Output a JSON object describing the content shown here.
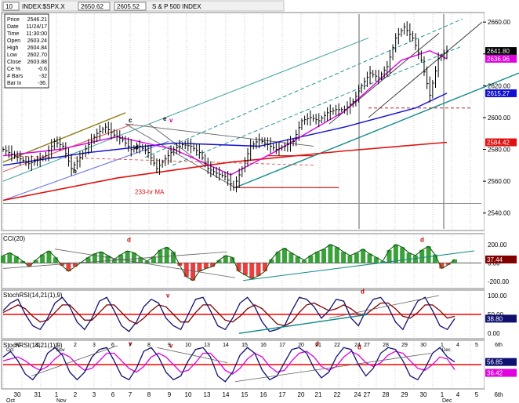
{
  "toolbar": {
    "interval": "10",
    "symbol": "INDEX:$SPX.X",
    "price_a": "2650.62",
    "price_b": "2605.52",
    "name": "S & P 500 INDEX"
  },
  "info_box": [
    {
      "label": "Price",
      "value": "2546.21"
    },
    {
      "label": "Date",
      "value": "11/24/17"
    },
    {
      "label": "Time",
      "value": "11:30:00"
    },
    {
      "label": "Open",
      "value": "2603.24"
    },
    {
      "label": "High",
      "value": "2604.84"
    },
    {
      "label": "Low",
      "value": "2602.70"
    },
    {
      "label": "Close",
      "value": "2603.88"
    },
    {
      "label": "Ce %",
      "value": "-0.6"
    },
    {
      "label": "# Bars",
      "value": "-32"
    },
    {
      "label": "Bar Ix",
      "value": "-36."
    }
  ],
  "colors": {
    "price_bars": "#000000",
    "ma_233": "#e01010",
    "ma_blue": "#1010d0",
    "ma_magenta": "#e000e0",
    "teal": "#108a8a",
    "olive": "#8a7a10",
    "cci_green": "#0a8a0a",
    "cci_red": "#e01010",
    "stoch_navy": "#101070",
    "stoch_maroon": "#800000",
    "stoch_magenta": "#e000e0",
    "ref_line": "#ff0000"
  },
  "chart_data": [
    {
      "type": "line",
      "panel": "price",
      "title": "S & P 500 INDEX",
      "annotation_ma": "233-hr MA",
      "annotation_letters": [
        "b",
        "d",
        "c",
        "e",
        "v"
      ],
      "ylim": [
        2530,
        2665
      ],
      "y_ticks": [
        "2660.00",
        "2640.00",
        "2620.00",
        "2600.00",
        "2580.00",
        "2560.00",
        "2540.00"
      ],
      "right_tags": [
        {
          "label": "2641.80",
          "value": 2641.8,
          "color": "#000000"
        },
        {
          "label": "2636.96",
          "value": 2636.96,
          "color": "#e000e0"
        },
        {
          "label": "2615.27",
          "value": 2615.27,
          "color": "#1010d0"
        },
        {
          "label": "2584.42",
          "value": 2584.42,
          "color": "#e01010"
        }
      ],
      "close_path": [
        [
          0,
          2580
        ],
        [
          3,
          2577
        ],
        [
          6,
          2574
        ],
        [
          9,
          2571
        ],
        [
          12,
          2573
        ],
        [
          15,
          2576
        ],
        [
          18,
          2585
        ],
        [
          21,
          2582
        ],
        [
          24,
          2568
        ],
        [
          27,
          2575
        ],
        [
          30,
          2583
        ],
        [
          33,
          2590
        ],
        [
          36,
          2594
        ],
        [
          39,
          2589
        ],
        [
          42,
          2586
        ],
        [
          45,
          2580
        ],
        [
          48,
          2582
        ],
        [
          51,
          2578
        ],
        [
          54,
          2568
        ],
        [
          57,
          2574
        ],
        [
          60,
          2580
        ],
        [
          63,
          2583
        ],
        [
          66,
          2582
        ],
        [
          69,
          2578
        ],
        [
          72,
          2568
        ],
        [
          75,
          2565
        ],
        [
          78,
          2563
        ],
        [
          81,
          2556
        ],
        [
          84,
          2568
        ],
        [
          87,
          2582
        ],
        [
          90,
          2586
        ],
        [
          93,
          2583
        ],
        [
          96,
          2580
        ],
        [
          99,
          2582
        ],
        [
          102,
          2585
        ],
        [
          105,
          2598
        ],
        [
          108,
          2600
        ],
        [
          111,
          2598
        ],
        [
          114,
          2603
        ],
        [
          117,
          2605
        ],
        [
          120,
          2605
        ],
        [
          123,
          2610
        ],
        [
          126,
          2620
        ],
        [
          129,
          2628
        ],
        [
          132,
          2625
        ],
        [
          135,
          2632
        ],
        [
          138,
          2650
        ],
        [
          141,
          2657
        ],
        [
          144,
          2650
        ],
        [
          147,
          2636
        ],
        [
          150,
          2614
        ],
        [
          153,
          2637
        ],
        [
          156,
          2641.8
        ]
      ],
      "ma_233_path": [
        [
          0,
          2548
        ],
        [
          40,
          2562
        ],
        [
          80,
          2572
        ],
        [
          120,
          2579
        ],
        [
          156,
          2584.42
        ]
      ],
      "ma_blue_path": [
        [
          0,
          2570
        ],
        [
          30,
          2578
        ],
        [
          60,
          2584
        ],
        [
          90,
          2582
        ],
        [
          120,
          2594
        ],
        [
          145,
          2606
        ],
        [
          156,
          2615.27
        ]
      ],
      "ma_magenta_path": [
        [
          0,
          2576
        ],
        [
          20,
          2580
        ],
        [
          40,
          2588
        ],
        [
          60,
          2580
        ],
        [
          80,
          2564
        ],
        [
          95,
          2578
        ],
        [
          120,
          2604
        ],
        [
          140,
          2636
        ],
        [
          150,
          2642
        ],
        [
          156,
          2636.96
        ]
      ]
    },
    {
      "type": "bar",
      "panel": "cci",
      "title": "CCI(20)",
      "annotation_letters": [
        "d",
        "d"
      ],
      "ylim": [
        -260,
        300
      ],
      "y_ticks": [
        "200.00",
        "0.00",
        "-200.00"
      ],
      "right_tags": [
        {
          "label": "37.44",
          "value": 37.44,
          "color": "#800000"
        }
      ],
      "values": [
        80,
        110,
        70,
        20,
        -40,
        30,
        90,
        130,
        60,
        -30,
        -90,
        -40,
        10,
        60,
        100,
        120,
        80,
        40,
        90,
        130,
        110,
        60,
        20,
        70,
        140,
        170,
        120,
        -30,
        -150,
        -190,
        -90,
        -60,
        -40,
        30,
        80,
        60,
        -90,
        -130,
        -170,
        -140,
        -90,
        40,
        120,
        160,
        110,
        70,
        30,
        80,
        120,
        150,
        200,
        170,
        120,
        80,
        110,
        150,
        100,
        60,
        20,
        140,
        200,
        170,
        110,
        80,
        140,
        180,
        90,
        -60,
        -20,
        37.44
      ]
    },
    {
      "type": "line",
      "panel": "stochrsi_1",
      "title": "StochRSI(14,21(1),9)",
      "annotation_letters": [
        "v",
        "d"
      ],
      "ylim": [
        -10,
        110
      ],
      "y_ticks": [
        "100.00",
        "50.00",
        "0.00"
      ],
      "reference_line": 50,
      "right_tags": [
        {
          "label": "38.80",
          "value": 38.8,
          "color": "#101070"
        }
      ],
      "k_values": [
        60,
        80,
        90,
        50,
        20,
        10,
        40,
        80,
        95,
        70,
        30,
        10,
        40,
        85,
        95,
        60,
        20,
        5,
        30,
        70,
        90,
        80,
        40,
        20,
        10,
        50,
        90,
        95,
        60,
        20,
        10,
        40,
        80,
        95,
        70,
        30,
        5,
        10,
        20,
        60,
        95,
        90,
        70,
        40,
        60,
        90,
        85,
        40,
        20,
        60,
        90,
        95,
        70,
        30,
        10,
        50,
        85,
        95,
        60,
        20,
        10,
        38.8
      ],
      "d_values": [
        55,
        65,
        75,
        65,
        45,
        30,
        35,
        55,
        75,
        75,
        55,
        35,
        35,
        55,
        75,
        75,
        55,
        35,
        25,
        40,
        60,
        75,
        70,
        50,
        30,
        30,
        55,
        75,
        75,
        55,
        35,
        30,
        45,
        65,
        75,
        65,
        45,
        25,
        20,
        30,
        55,
        75,
        80,
        70,
        60,
        65,
        75,
        65,
        50,
        50,
        65,
        80,
        80,
        65,
        45,
        40,
        55,
        75,
        75,
        60,
        40,
        45
      ]
    },
    {
      "type": "line",
      "panel": "stochrsi_2",
      "title": "StochRSI(14,21(1),9)",
      "annotation_letters": [
        "v",
        "v",
        "d",
        "d"
      ],
      "ylim": [
        -10,
        110
      ],
      "y_ticks": [],
      "reference_line": 50,
      "right_tags": [
        {
          "label": "56.85",
          "value": 56.85,
          "color": "#101070"
        },
        {
          "label": "36.42",
          "value": 36.42,
          "color": "#e000e0"
        }
      ],
      "x_ticks": [
        "30",
        "31",
        "Nov",
        "2",
        "3",
        "6",
        "7",
        "8",
        "9",
        "10",
        "13",
        "14",
        "15",
        "16",
        "17",
        "20",
        "21",
        "22",
        "24",
        "27",
        "28",
        "29",
        "30",
        "1",
        "Dec",
        "4",
        "5",
        "6th"
      ],
      "x_tick_rows": {
        "row1": [
          "30",
          "31",
          "1",
          "2",
          "3",
          "6",
          "7",
          "8",
          "9",
          "10",
          "13",
          "14",
          "15",
          "16",
          "17",
          "20",
          "21",
          "22",
          "24",
          "27",
          "28",
          "29",
          "30",
          "1",
          "4",
          "5",
          "6th"
        ],
        "row2": [
          "Oct",
          "Nov",
          "Dec"
        ]
      },
      "k_values": [
        70,
        85,
        60,
        25,
        10,
        35,
        80,
        95,
        75,
        30,
        10,
        30,
        70,
        90,
        95,
        60,
        20,
        10,
        40,
        85,
        95,
        70,
        30,
        10,
        20,
        60,
        90,
        95,
        70,
        20,
        5,
        30,
        75,
        95,
        80,
        35,
        10,
        20,
        55,
        90,
        95,
        80,
        40,
        15,
        30,
        70,
        95,
        90,
        50,
        20,
        40,
        80,
        95,
        90,
        60,
        20,
        10,
        40,
        80,
        95,
        70,
        56.85
      ],
      "d_values": [
        60,
        65,
        70,
        60,
        45,
        35,
        45,
        65,
        80,
        70,
        50,
        35,
        40,
        60,
        80,
        80,
        60,
        40,
        30,
        45,
        70,
        80,
        70,
        50,
        30,
        35,
        55,
        80,
        80,
        60,
        35,
        25,
        40,
        65,
        80,
        70,
        45,
        30,
        35,
        60,
        80,
        85,
        70,
        45,
        35,
        45,
        70,
        85,
        75,
        55,
        45,
        55,
        75,
        85,
        80,
        60,
        40,
        35,
        50,
        70,
        65,
        36.42
      ]
    }
  ]
}
